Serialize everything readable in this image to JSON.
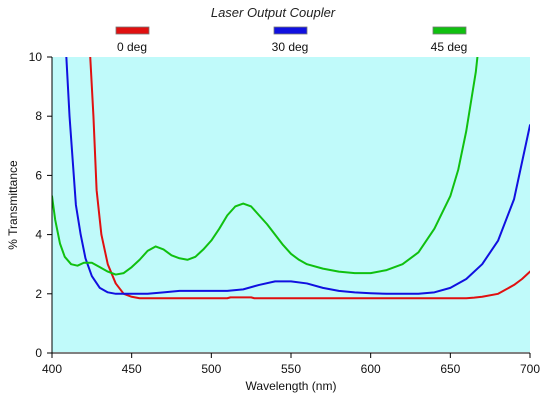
{
  "chart_data": {
    "type": "line",
    "title": "Laser Output Coupler",
    "xlabel": "Wavelength (nm)",
    "ylabel": "% Transmittance",
    "xlim": [
      400,
      700
    ],
    "ylim": [
      0,
      10
    ],
    "x_ticks": [
      400,
      450,
      500,
      550,
      600,
      650,
      700
    ],
    "y_ticks": [
      0,
      2,
      4,
      6,
      8,
      10
    ],
    "grid": false,
    "legend_position": "top",
    "plot_background": "#c0fafa",
    "series": [
      {
        "name": "0 deg",
        "color": "#e01010",
        "points": [
          [
            424,
            10
          ],
          [
            426,
            8.0
          ],
          [
            428,
            5.5
          ],
          [
            431,
            4.0
          ],
          [
            435,
            3.0
          ],
          [
            440,
            2.35
          ],
          [
            445,
            2.0
          ],
          [
            450,
            1.9
          ],
          [
            455,
            1.85
          ],
          [
            460,
            1.85
          ],
          [
            480,
            1.85
          ],
          [
            500,
            1.85
          ],
          [
            510,
            1.85
          ],
          [
            512,
            1.88
          ],
          [
            520,
            1.88
          ],
          [
            525,
            1.88
          ],
          [
            527,
            1.85
          ],
          [
            550,
            1.85
          ],
          [
            580,
            1.85
          ],
          [
            600,
            1.85
          ],
          [
            620,
            1.85
          ],
          [
            640,
            1.85
          ],
          [
            660,
            1.85
          ],
          [
            665,
            1.87
          ],
          [
            670,
            1.9
          ],
          [
            680,
            2.0
          ],
          [
            690,
            2.3
          ],
          [
            695,
            2.5
          ],
          [
            700,
            2.75
          ]
        ]
      },
      {
        "name": "30 deg",
        "color": "#1010e0",
        "points": [
          [
            409,
            10
          ],
          [
            410,
            9.0
          ],
          [
            411,
            8.0
          ],
          [
            413,
            6.5
          ],
          [
            415,
            5.0
          ],
          [
            418,
            4.0
          ],
          [
            421,
            3.2
          ],
          [
            425,
            2.6
          ],
          [
            430,
            2.2
          ],
          [
            435,
            2.05
          ],
          [
            440,
            2.0
          ],
          [
            450,
            2.0
          ],
          [
            460,
            2.0
          ],
          [
            470,
            2.05
          ],
          [
            480,
            2.1
          ],
          [
            490,
            2.1
          ],
          [
            500,
            2.1
          ],
          [
            510,
            2.1
          ],
          [
            520,
            2.15
          ],
          [
            530,
            2.3
          ],
          [
            540,
            2.42
          ],
          [
            550,
            2.42
          ],
          [
            560,
            2.35
          ],
          [
            570,
            2.2
          ],
          [
            580,
            2.1
          ],
          [
            590,
            2.05
          ],
          [
            600,
            2.02
          ],
          [
            610,
            2.0
          ],
          [
            620,
            2.0
          ],
          [
            630,
            2.0
          ],
          [
            640,
            2.05
          ],
          [
            650,
            2.2
          ],
          [
            660,
            2.5
          ],
          [
            670,
            3.0
          ],
          [
            680,
            3.8
          ],
          [
            690,
            5.2
          ],
          [
            700,
            7.7
          ]
        ]
      },
      {
        "name": "45 deg",
        "color": "#10c010",
        "points": [
          [
            400,
            5.3
          ],
          [
            402,
            4.5
          ],
          [
            405,
            3.7
          ],
          [
            408,
            3.25
          ],
          [
            412,
            3.0
          ],
          [
            416,
            2.95
          ],
          [
            420,
            3.05
          ],
          [
            425,
            3.05
          ],
          [
            430,
            2.9
          ],
          [
            435,
            2.75
          ],
          [
            440,
            2.65
          ],
          [
            445,
            2.7
          ],
          [
            450,
            2.9
          ],
          [
            455,
            3.15
          ],
          [
            460,
            3.45
          ],
          [
            465,
            3.6
          ],
          [
            470,
            3.5
          ],
          [
            475,
            3.3
          ],
          [
            480,
            3.2
          ],
          [
            485,
            3.15
          ],
          [
            490,
            3.25
          ],
          [
            495,
            3.5
          ],
          [
            500,
            3.8
          ],
          [
            505,
            4.2
          ],
          [
            510,
            4.65
          ],
          [
            515,
            4.95
          ],
          [
            520,
            5.05
          ],
          [
            525,
            4.95
          ],
          [
            530,
            4.65
          ],
          [
            535,
            4.35
          ],
          [
            540,
            4.0
          ],
          [
            545,
            3.65
          ],
          [
            550,
            3.35
          ],
          [
            555,
            3.15
          ],
          [
            560,
            3.0
          ],
          [
            570,
            2.85
          ],
          [
            580,
            2.75
          ],
          [
            590,
            2.7
          ],
          [
            600,
            2.7
          ],
          [
            610,
            2.8
          ],
          [
            620,
            3.0
          ],
          [
            630,
            3.4
          ],
          [
            640,
            4.2
          ],
          [
            650,
            5.3
          ],
          [
            655,
            6.2
          ],
          [
            660,
            7.5
          ],
          [
            663,
            8.5
          ],
          [
            666,
            9.5
          ],
          [
            667,
            10
          ]
        ]
      }
    ]
  }
}
